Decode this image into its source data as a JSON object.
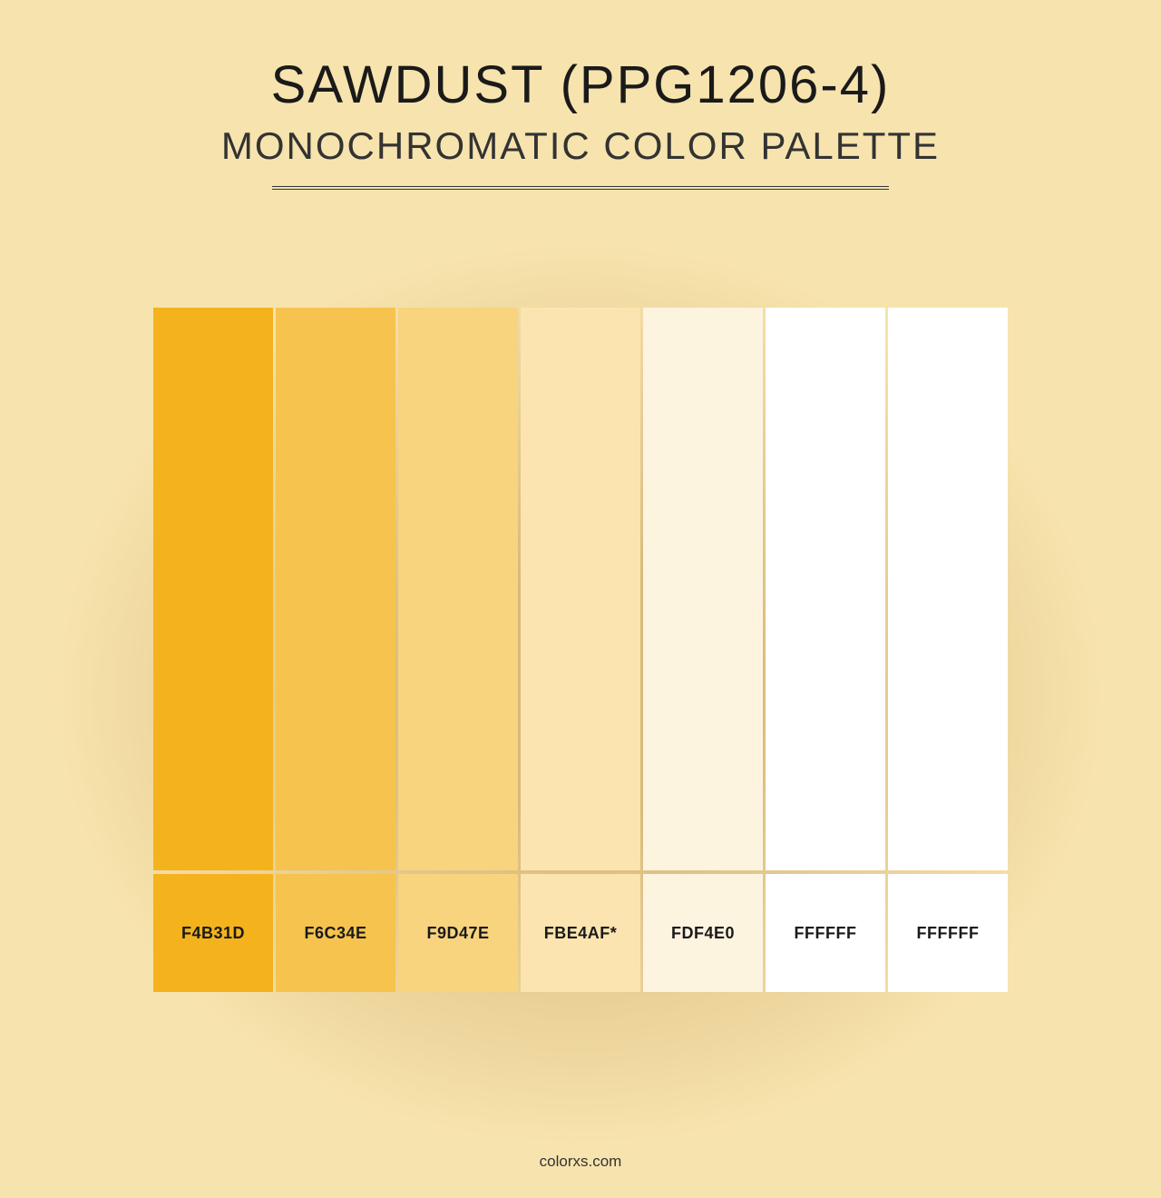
{
  "background": {
    "outer_color": "#f7e3ad",
    "center_color": "#d8b97a",
    "gradient_type": "radial",
    "gradient_center": "50% 58%",
    "gradient_inner_stop": "20%",
    "gradient_outer_stop": "75%"
  },
  "header": {
    "title": "SAWDUST (PPG1206-4)",
    "subtitle": "MONOCHROMATIC COLOR PALETTE",
    "title_color": "#1a1a1a",
    "subtitle_color": "#333333",
    "title_fontsize": 58,
    "subtitle_fontsize": 42,
    "divider_color": "#333333",
    "divider_width": 680
  },
  "palette": {
    "type": "infographic",
    "swatch_count": 7,
    "swatch_width": 132,
    "swatch_gap": 3,
    "main_height": 620,
    "label_height": 130,
    "label_fontsize": 18,
    "label_color": "#1a1a1a",
    "highlight_index": 3,
    "highlight_suffix": "*",
    "swatches": [
      {
        "hex": "F4B31D",
        "color": "#f4b31d"
      },
      {
        "hex": "F6C34E",
        "color": "#f6c34e"
      },
      {
        "hex": "F9D47E",
        "color": "#f9d47e"
      },
      {
        "hex": "FBE4AF",
        "color": "#fbe4af"
      },
      {
        "hex": "FDF4E0",
        "color": "#fdf4e0"
      },
      {
        "hex": "FFFFFF",
        "color": "#ffffff"
      },
      {
        "hex": "FFFFFF",
        "color": "#ffffff"
      }
    ]
  },
  "footer": {
    "text": "colorxs.com",
    "color": "#333333",
    "fontsize": 17
  }
}
